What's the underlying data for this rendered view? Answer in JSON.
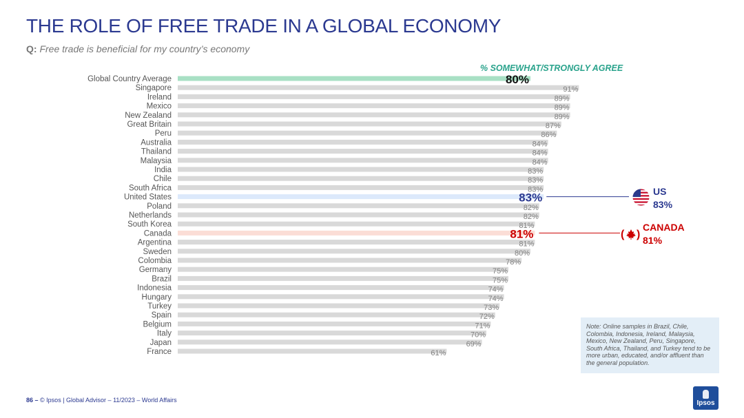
{
  "header": {
    "title": "THE ROLE OF FREE TRADE IN A GLOBAL ECONOMY",
    "question_label": "Q:",
    "question_text": "Free trade is beneficial for my country’s economy"
  },
  "legend_label": "% SOMEWHAT/STRONGLY AGREE",
  "colors": {
    "bar_default": "#d9d9d9",
    "bar_global": "#a8e0c4",
    "bar_us": "#dce9fb",
    "bar_canada": "#fbddd6",
    "us": "#2b3990",
    "canada": "#cc0000",
    "label_gray": "#808080"
  },
  "chart_data": {
    "type": "bar",
    "orientation": "horizontal",
    "title": "THE ROLE OF FREE TRADE IN A GLOBAL ECONOMY",
    "xlabel": "% SOMEWHAT/STRONGLY AGREE",
    "xlim": [
      0,
      100
    ],
    "value_suffix": "%",
    "categories": [
      "Global Country Average",
      "Singapore",
      "Ireland",
      "Mexico",
      "New Zealand",
      "Great Britain",
      "Peru",
      "Australia",
      "Thailand",
      "Malaysia",
      "India",
      "Chile",
      "South Africa",
      "United States",
      "Poland",
      "Netherlands",
      "South Korea",
      "Canada",
      "Argentina",
      "Sweden",
      "Colombia",
      "Germany",
      "Brazil",
      "Indonesia",
      "Hungary",
      "Turkey",
      "Spain",
      "Belgium",
      "Italy",
      "Japan",
      "France"
    ],
    "values": [
      80,
      91,
      89,
      89,
      89,
      87,
      86,
      84,
      84,
      84,
      83,
      83,
      83,
      83,
      82,
      82,
      81,
      81,
      81,
      80,
      78,
      75,
      75,
      74,
      74,
      73,
      72,
      71,
      70,
      69,
      61
    ],
    "highlight": {
      "Global Country Average": "global",
      "United States": "us",
      "Canada": "canada"
    }
  },
  "callouts": {
    "us": {
      "name": "US",
      "value": "83%",
      "icon": "us-flag-icon"
    },
    "canada": {
      "name": "CANADA",
      "value": "81%",
      "icon": "canada-flag-icon"
    }
  },
  "note": "Note: Online samples in Brazil, Chile, Colombia, Indonesia, Ireland, Malaysia, Mexico, New Zealand, Peru, Singapore, South Africa, Thailand, and Turkey tend to be more urban, educated, and/or affluent than the general population.",
  "footer": {
    "page_number": "86 –",
    "text": "© Ipsos | Global Advisor – 11/2023 – World Affairs"
  },
  "logo": {
    "text": "Ipsos"
  }
}
